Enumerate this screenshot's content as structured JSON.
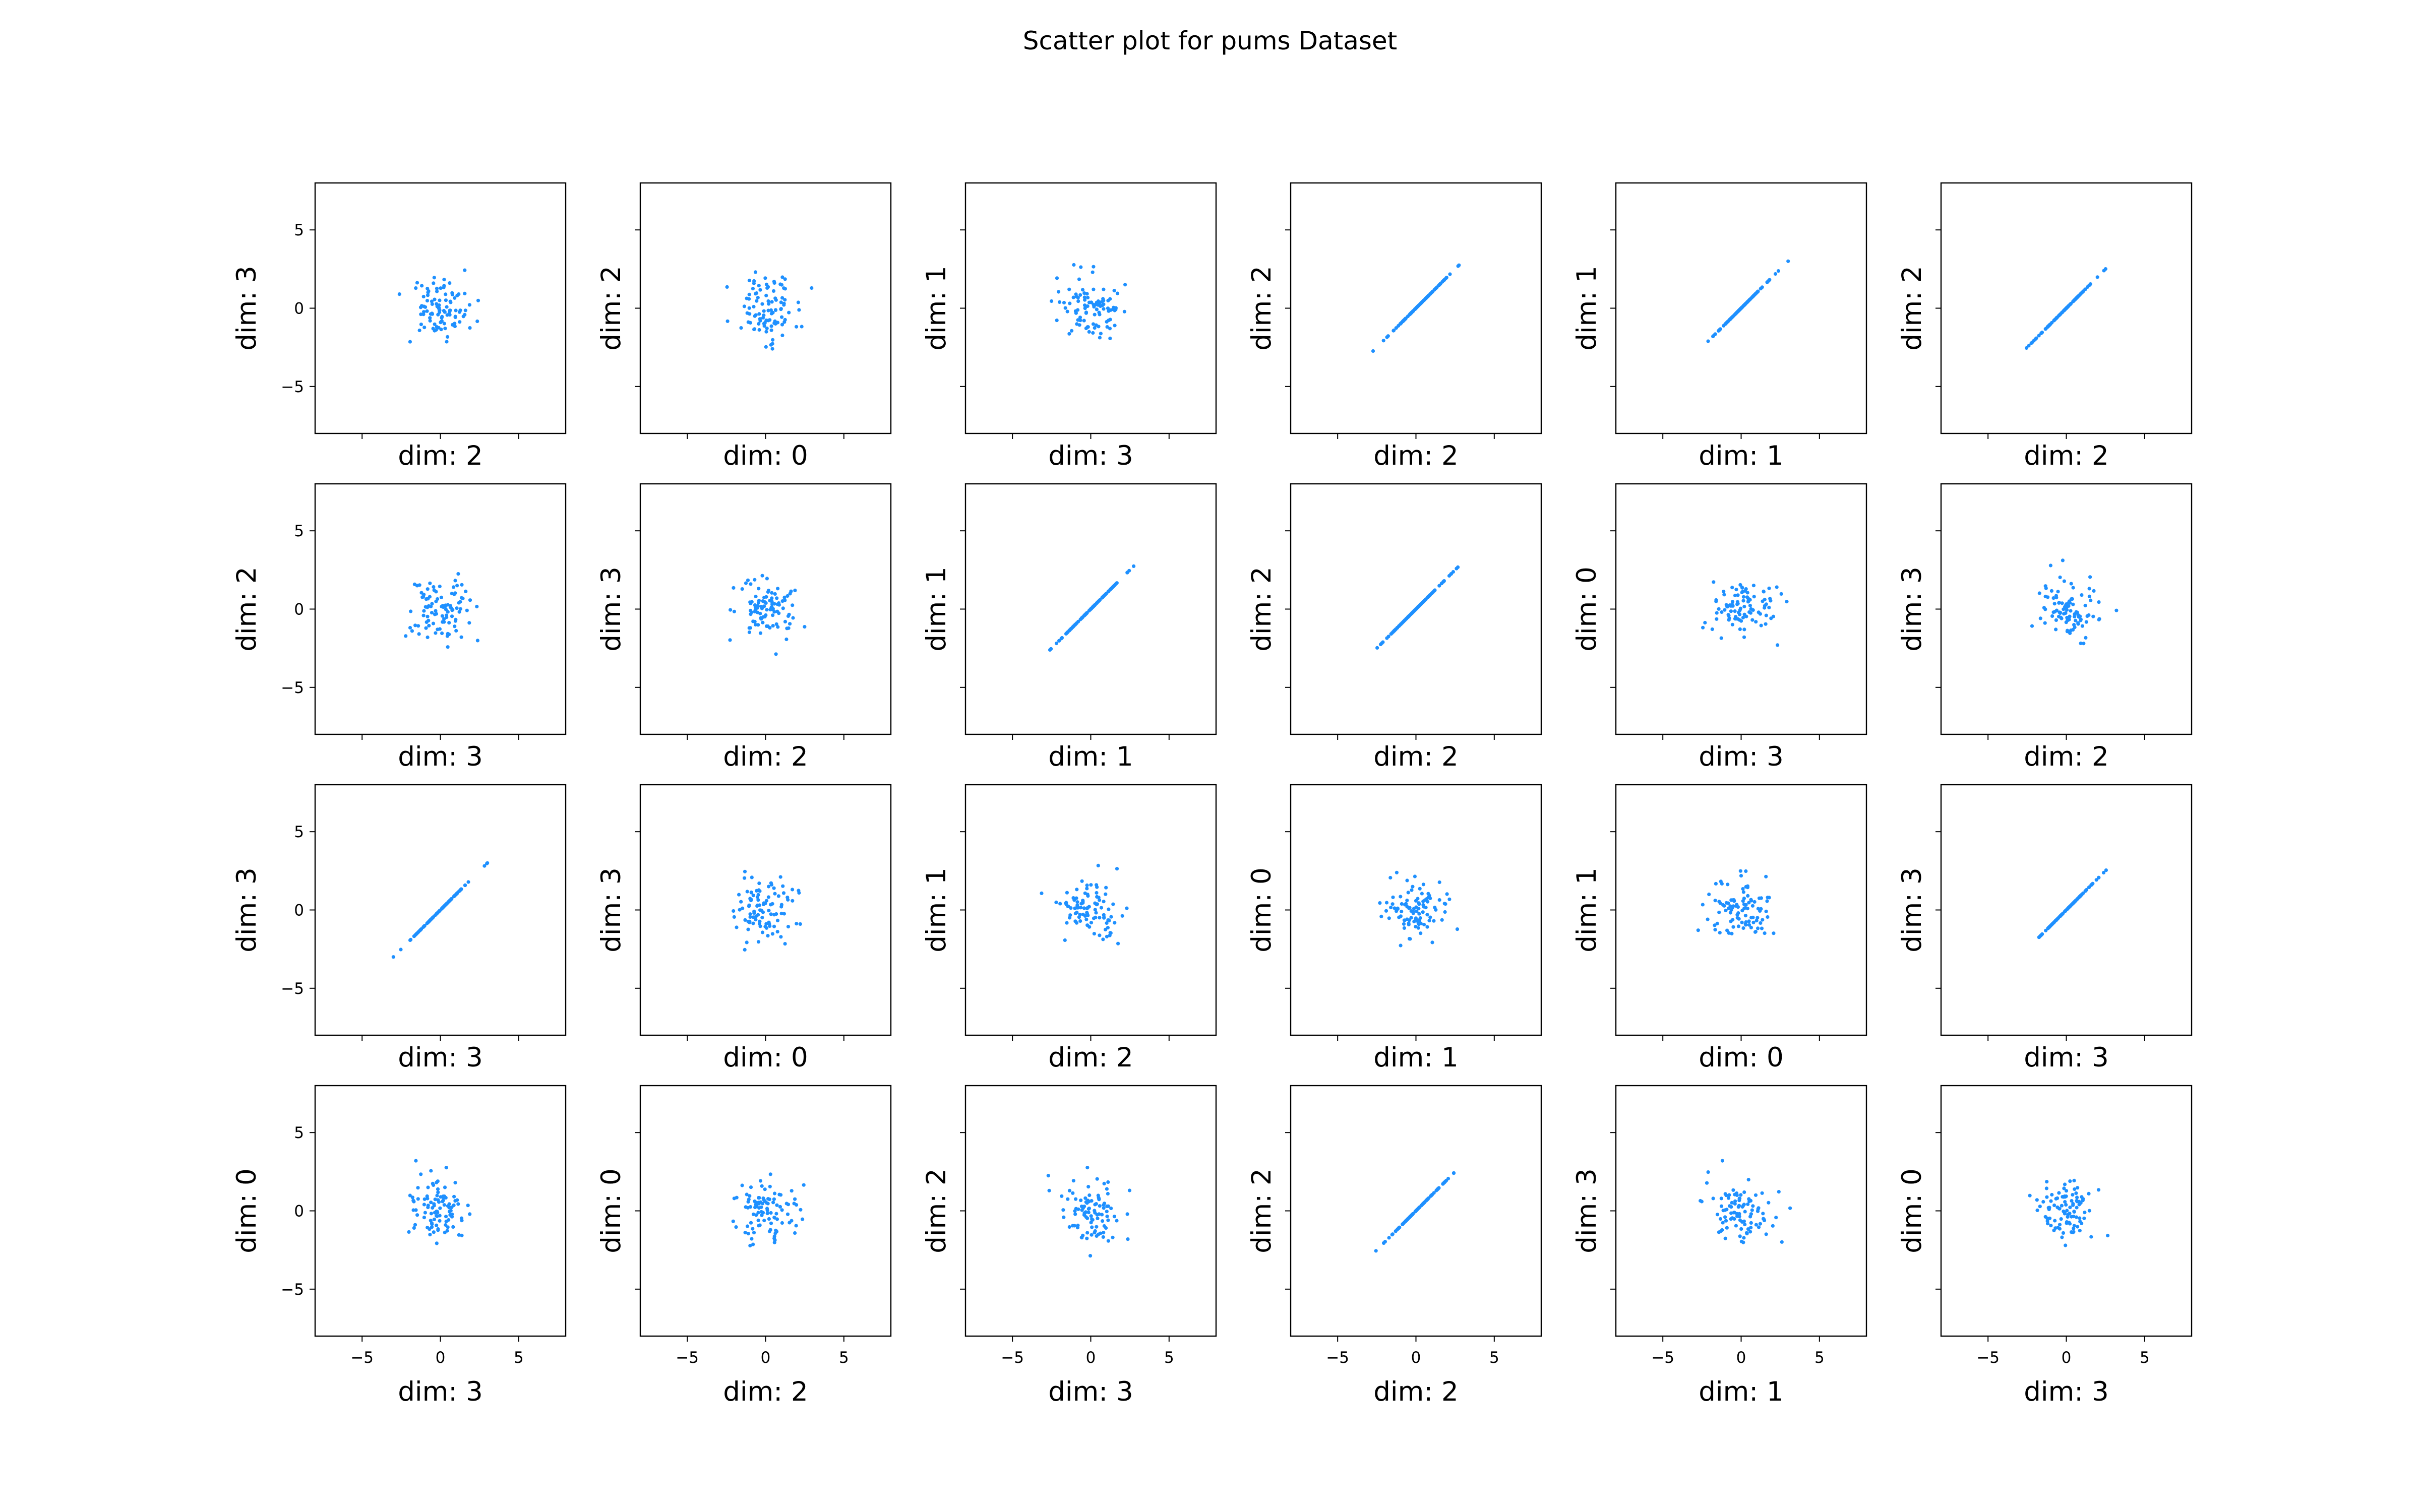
{
  "title": "Scatter plot for pums Dataset",
  "chart_data": {
    "type": "scatter",
    "layout": {
      "rows": 4,
      "cols": 6
    },
    "xlim": [
      -8,
      8
    ],
    "ylim": [
      -8,
      8
    ],
    "xticks": [
      -5,
      0,
      5
    ],
    "yticks": [
      -5,
      0,
      5
    ],
    "tick_labels_x": [
      "−5",
      "0",
      "5"
    ],
    "tick_labels_y": [
      "−5",
      "0",
      "5"
    ],
    "shared_axes": true,
    "grid": false,
    "legend": "none",
    "point_color": "#1e90ff",
    "points_per_panel": 100,
    "panels": [
      {
        "xlabel": "dim: 2",
        "ylabel": "dim: 3",
        "pattern": "cloud"
      },
      {
        "xlabel": "dim: 0",
        "ylabel": "dim: 2",
        "pattern": "cloud"
      },
      {
        "xlabel": "dim: 3",
        "ylabel": "dim: 1",
        "pattern": "cloud"
      },
      {
        "xlabel": "dim: 2",
        "ylabel": "dim: 2",
        "pattern": "diagonal"
      },
      {
        "xlabel": "dim: 1",
        "ylabel": "dim: 1",
        "pattern": "diagonal"
      },
      {
        "xlabel": "dim: 2",
        "ylabel": "dim: 2",
        "pattern": "diagonal"
      },
      {
        "xlabel": "dim: 3",
        "ylabel": "dim: 2",
        "pattern": "cloud"
      },
      {
        "xlabel": "dim: 2",
        "ylabel": "dim: 3",
        "pattern": "cloud"
      },
      {
        "xlabel": "dim: 1",
        "ylabel": "dim: 1",
        "pattern": "diagonal"
      },
      {
        "xlabel": "dim: 2",
        "ylabel": "dim: 2",
        "pattern": "diagonal"
      },
      {
        "xlabel": "dim: 3",
        "ylabel": "dim: 0",
        "pattern": "cloud"
      },
      {
        "xlabel": "dim: 2",
        "ylabel": "dim: 3",
        "pattern": "cloud"
      },
      {
        "xlabel": "dim: 3",
        "ylabel": "dim: 3",
        "pattern": "diagonal"
      },
      {
        "xlabel": "dim: 0",
        "ylabel": "dim: 3",
        "pattern": "cloud"
      },
      {
        "xlabel": "dim: 2",
        "ylabel": "dim: 1",
        "pattern": "cloud"
      },
      {
        "xlabel": "dim: 1",
        "ylabel": "dim: 0",
        "pattern": "cloud"
      },
      {
        "xlabel": "dim: 0",
        "ylabel": "dim: 1",
        "pattern": "cloud"
      },
      {
        "xlabel": "dim: 3",
        "ylabel": "dim: 3",
        "pattern": "diagonal"
      },
      {
        "xlabel": "dim: 3",
        "ylabel": "dim: 0",
        "pattern": "cloud"
      },
      {
        "xlabel": "dim: 2",
        "ylabel": "dim: 0",
        "pattern": "cloud"
      },
      {
        "xlabel": "dim: 3",
        "ylabel": "dim: 2",
        "pattern": "cloud"
      },
      {
        "xlabel": "dim: 2",
        "ylabel": "dim: 2",
        "pattern": "diagonal"
      },
      {
        "xlabel": "dim: 1",
        "ylabel": "dim: 3",
        "pattern": "cloud"
      },
      {
        "xlabel": "dim: 3",
        "ylabel": "dim: 0",
        "pattern": "cloud"
      }
    ]
  }
}
